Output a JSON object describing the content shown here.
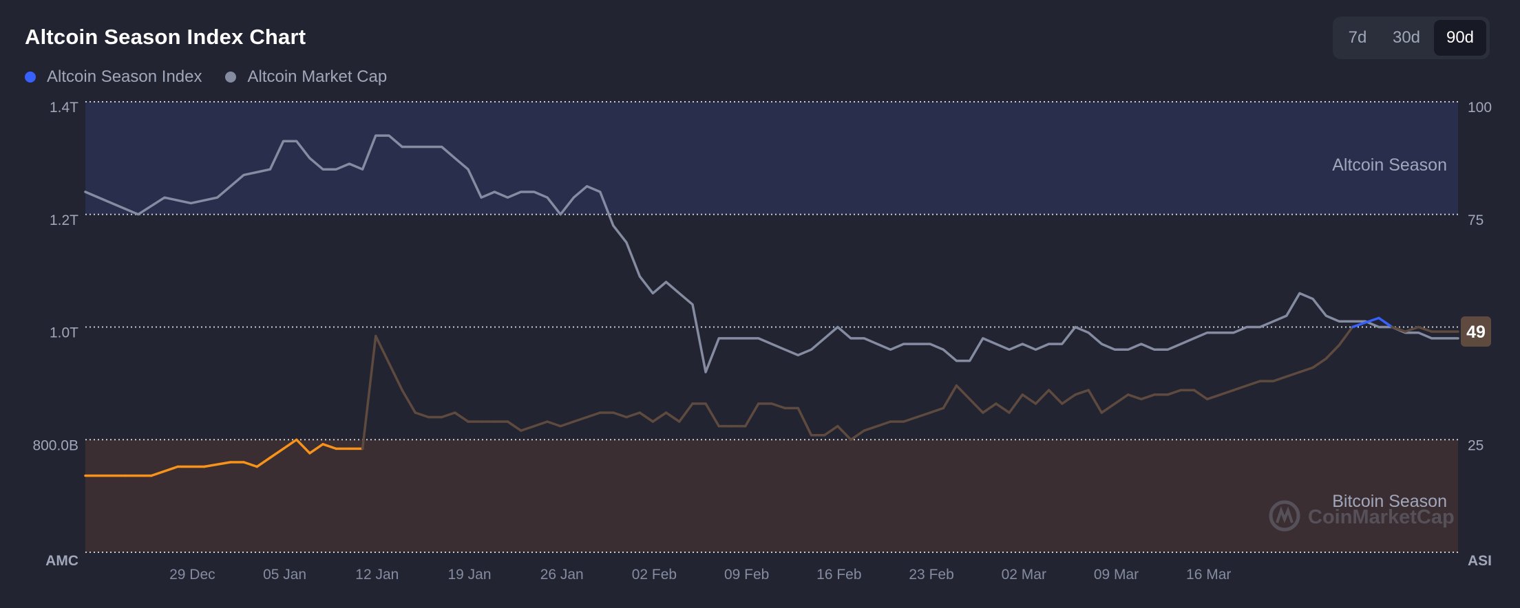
{
  "title": "Altcoin Season Index Chart",
  "legend": [
    {
      "label": "Altcoin Season Index",
      "color": "#3861fb"
    },
    {
      "label": "Altcoin Market Cap",
      "color": "#858ca2"
    }
  ],
  "ranges": [
    {
      "label": "7d",
      "active": false
    },
    {
      "label": "30d",
      "active": false
    },
    {
      "label": "90d",
      "active": true
    }
  ],
  "chart_data": {
    "type": "line",
    "x_ticks": [
      "29 Dec",
      "05 Jan",
      "12 Jan",
      "19 Jan",
      "26 Jan",
      "02 Feb",
      "09 Feb",
      "16 Feb",
      "23 Feb",
      "02 Mar",
      "09 Mar",
      "16 Mar"
    ],
    "x_range": [
      "21 Dec",
      "21 Mar"
    ],
    "left_axis": {
      "ticks": [
        "1.4T",
        "1.2T",
        "1.0T",
        "800.0B"
      ],
      "corner_label": "AMC",
      "ylim": [
        600000000000,
        1400000000000
      ]
    },
    "right_axis": {
      "ticks": [
        "100",
        "75",
        "50",
        "25"
      ],
      "corner_label": "ASI",
      "ylim": [
        0,
        100
      ]
    },
    "zones": [
      {
        "label": "Altcoin Season",
        "from": 75,
        "to": 100,
        "color": "#2a2e4d"
      },
      {
        "label": "Bitcoin Season",
        "from": 0,
        "to": 25,
        "color": "#3a2e33"
      }
    ],
    "current_value": {
      "value": 49,
      "label": "49"
    },
    "watermark": "CoinMarketCap",
    "series": [
      {
        "name": "Altcoin Season Index",
        "axis": "right",
        "color_low": "#f7931a",
        "color_mid": "#5e4a3e",
        "color_high": "#3861fb",
        "points": [
          [
            0,
            17
          ],
          [
            3,
            17
          ],
          [
            5,
            17
          ],
          [
            7,
            19
          ],
          [
            9,
            19
          ],
          [
            11,
            20
          ],
          [
            12,
            20
          ],
          [
            13,
            19
          ],
          [
            14,
            21
          ],
          [
            15,
            23
          ],
          [
            16,
            25
          ],
          [
            17,
            22
          ],
          [
            18,
            24
          ],
          [
            19,
            23
          ],
          [
            20,
            23
          ],
          [
            21,
            23
          ],
          [
            22,
            48
          ],
          [
            23,
            42
          ],
          [
            24,
            36
          ],
          [
            25,
            31
          ],
          [
            26,
            30
          ],
          [
            27,
            30
          ],
          [
            28,
            31
          ],
          [
            29,
            29
          ],
          [
            30,
            29
          ],
          [
            31,
            29
          ],
          [
            32,
            29
          ],
          [
            33,
            27
          ],
          [
            34,
            28
          ],
          [
            35,
            29
          ],
          [
            36,
            28
          ],
          [
            37,
            29
          ],
          [
            38,
            30
          ],
          [
            39,
            31
          ],
          [
            40,
            31
          ],
          [
            41,
            30
          ],
          [
            42,
            31
          ],
          [
            43,
            29
          ],
          [
            44,
            31
          ],
          [
            45,
            29
          ],
          [
            46,
            33
          ],
          [
            47,
            33
          ],
          [
            48,
            28
          ],
          [
            49,
            28
          ],
          [
            50,
            28
          ],
          [
            51,
            33
          ],
          [
            52,
            33
          ],
          [
            53,
            32
          ],
          [
            54,
            32
          ],
          [
            55,
            26
          ],
          [
            56,
            26
          ],
          [
            57,
            28
          ],
          [
            58,
            25
          ],
          [
            59,
            27
          ],
          [
            60,
            28
          ],
          [
            61,
            29
          ],
          [
            62,
            29
          ],
          [
            63,
            30
          ],
          [
            64,
            31
          ],
          [
            65,
            32
          ],
          [
            66,
            37
          ],
          [
            67,
            34
          ],
          [
            68,
            31
          ],
          [
            69,
            33
          ],
          [
            70,
            31
          ],
          [
            71,
            35
          ],
          [
            72,
            33
          ],
          [
            73,
            36
          ],
          [
            74,
            33
          ],
          [
            75,
            35
          ],
          [
            76,
            36
          ],
          [
            77,
            31
          ],
          [
            78,
            33
          ],
          [
            79,
            35
          ],
          [
            80,
            34
          ],
          [
            81,
            35
          ],
          [
            82,
            35
          ],
          [
            83,
            36
          ],
          [
            84,
            36
          ],
          [
            85,
            34
          ],
          [
            86,
            35
          ],
          [
            87,
            36
          ],
          [
            88,
            37
          ],
          [
            89,
            38
          ],
          [
            90,
            38
          ],
          [
            91,
            39
          ],
          [
            92,
            40
          ],
          [
            93,
            41
          ],
          [
            94,
            43
          ],
          [
            95,
            46
          ],
          [
            96,
            50
          ],
          [
            97,
            51
          ],
          [
            98,
            52
          ],
          [
            99,
            50
          ],
          [
            100,
            49
          ],
          [
            101,
            50
          ],
          [
            102,
            49
          ],
          [
            103,
            49
          ],
          [
            104,
            49
          ]
        ]
      },
      {
        "name": "Altcoin Market Cap",
        "axis": "left",
        "color": "#858ca2",
        "points": [
          [
            0,
            1.24
          ],
          [
            2,
            1.22
          ],
          [
            4,
            1.2
          ],
          [
            6,
            1.23
          ],
          [
            8,
            1.22
          ],
          [
            10,
            1.23
          ],
          [
            12,
            1.27
          ],
          [
            14,
            1.28
          ],
          [
            15,
            1.33
          ],
          [
            16,
            1.33
          ],
          [
            17,
            1.3
          ],
          [
            18,
            1.28
          ],
          [
            19,
            1.28
          ],
          [
            20,
            1.29
          ],
          [
            21,
            1.28
          ],
          [
            22,
            1.34
          ],
          [
            23,
            1.34
          ],
          [
            24,
            1.32
          ],
          [
            25,
            1.32
          ],
          [
            26,
            1.32
          ],
          [
            27,
            1.32
          ],
          [
            28,
            1.3
          ],
          [
            29,
            1.28
          ],
          [
            30,
            1.23
          ],
          [
            31,
            1.24
          ],
          [
            32,
            1.23
          ],
          [
            33,
            1.24
          ],
          [
            34,
            1.24
          ],
          [
            35,
            1.23
          ],
          [
            36,
            1.2
          ],
          [
            37,
            1.23
          ],
          [
            38,
            1.25
          ],
          [
            39,
            1.24
          ],
          [
            40,
            1.18
          ],
          [
            41,
            1.15
          ],
          [
            42,
            1.09
          ],
          [
            43,
            1.06
          ],
          [
            44,
            1.08
          ],
          [
            45,
            1.06
          ],
          [
            46,
            1.04
          ],
          [
            47,
            0.92
          ],
          [
            48,
            0.98
          ],
          [
            49,
            0.98
          ],
          [
            50,
            0.98
          ],
          [
            51,
            0.98
          ],
          [
            52,
            0.97
          ],
          [
            53,
            0.96
          ],
          [
            54,
            0.95
          ],
          [
            55,
            0.96
          ],
          [
            56,
            0.98
          ],
          [
            57,
            1.0
          ],
          [
            58,
            0.98
          ],
          [
            59,
            0.98
          ],
          [
            60,
            0.97
          ],
          [
            61,
            0.96
          ],
          [
            62,
            0.97
          ],
          [
            63,
            0.97
          ],
          [
            64,
            0.97
          ],
          [
            65,
            0.96
          ],
          [
            66,
            0.94
          ],
          [
            67,
            0.94
          ],
          [
            68,
            0.98
          ],
          [
            69,
            0.97
          ],
          [
            70,
            0.96
          ],
          [
            71,
            0.97
          ],
          [
            72,
            0.96
          ],
          [
            73,
            0.97
          ],
          [
            74,
            0.97
          ],
          [
            75,
            1.0
          ],
          [
            76,
            0.99
          ],
          [
            77,
            0.97
          ],
          [
            78,
            0.96
          ],
          [
            79,
            0.96
          ],
          [
            80,
            0.97
          ],
          [
            81,
            0.96
          ],
          [
            82,
            0.96
          ],
          [
            83,
            0.97
          ],
          [
            84,
            0.98
          ],
          [
            85,
            0.99
          ],
          [
            86,
            0.99
          ],
          [
            87,
            0.99
          ],
          [
            88,
            1.0
          ],
          [
            89,
            1.0
          ],
          [
            90,
            1.01
          ],
          [
            91,
            1.02
          ],
          [
            92,
            1.06
          ],
          [
            93,
            1.05
          ],
          [
            94,
            1.02
          ],
          [
            95,
            1.01
          ],
          [
            96,
            1.01
          ],
          [
            97,
            1.01
          ],
          [
            98,
            1.0
          ],
          [
            99,
            1.0
          ],
          [
            100,
            0.99
          ],
          [
            101,
            0.99
          ],
          [
            102,
            0.98
          ],
          [
            103,
            0.98
          ],
          [
            104,
            0.98
          ]
        ]
      }
    ]
  }
}
